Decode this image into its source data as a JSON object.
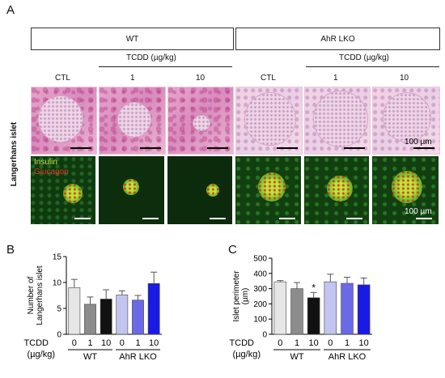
{
  "panel_labels": {
    "a": "A",
    "b": "B",
    "c": "C"
  },
  "panel_a": {
    "groups": [
      {
        "label": "WT"
      },
      {
        "label": "AhR LKO"
      }
    ],
    "treatment_title": "TCDD (µg/kg)",
    "columns": [
      "CTL",
      "1",
      "10",
      "CTL",
      "1",
      "10"
    ],
    "row_label": "Langerhans islet",
    "scale_label": "100 µm",
    "stain_insulin": "Insulin",
    "stain_glucagon": "Glucagon",
    "colors": {
      "insulin": "#c8e84a",
      "glucagon": "#e8322a",
      "he": "#d98bbd"
    }
  },
  "chart_data": [
    {
      "type": "bar",
      "ylabel": "Number of Langerhans islet",
      "ylim": [
        0,
        15
      ],
      "yticks": [
        0,
        5,
        10,
        15
      ],
      "x_row_label": "TCDD",
      "x_row_unit": "(µg/kg)",
      "categories": [
        "0",
        "1",
        "10",
        "0",
        "1",
        "10"
      ],
      "groups": [
        {
          "label": "WT",
          "span": [
            0,
            2
          ]
        },
        {
          "label": "AhR LKO",
          "span": [
            3,
            5
          ]
        }
      ],
      "values": [
        9.0,
        5.8,
        6.8,
        7.6,
        6.6,
        9.8
      ],
      "errors": [
        1.6,
        1.4,
        1.8,
        0.8,
        0.9,
        2.2
      ],
      "colors": [
        "#e6e6e6",
        "#8c8c8c",
        "#111111",
        "#c4c4f0",
        "#6a6ae6",
        "#1a1ae6"
      ]
    },
    {
      "type": "bar",
      "ylabel": "Islet perimeter (µm)",
      "ylim": [
        0,
        500
      ],
      "yticks": [
        0,
        100,
        200,
        300,
        400,
        500
      ],
      "x_row_label": "TCDD",
      "x_row_unit": "(µg/kg)",
      "categories": [
        "0",
        "1",
        "10",
        "0",
        "1",
        "10"
      ],
      "groups": [
        {
          "label": "WT",
          "span": [
            0,
            2
          ]
        },
        {
          "label": "AhR LKO",
          "span": [
            3,
            5
          ]
        }
      ],
      "values": [
        345,
        300,
        240,
        345,
        335,
        325
      ],
      "errors": [
        8,
        40,
        35,
        50,
        40,
        45
      ],
      "annotations": [
        {
          "index": 2,
          "text": "*"
        }
      ],
      "colors": [
        "#e6e6e6",
        "#8c8c8c",
        "#111111",
        "#c4c4f0",
        "#6a6ae6",
        "#1a1ae6"
      ]
    }
  ]
}
